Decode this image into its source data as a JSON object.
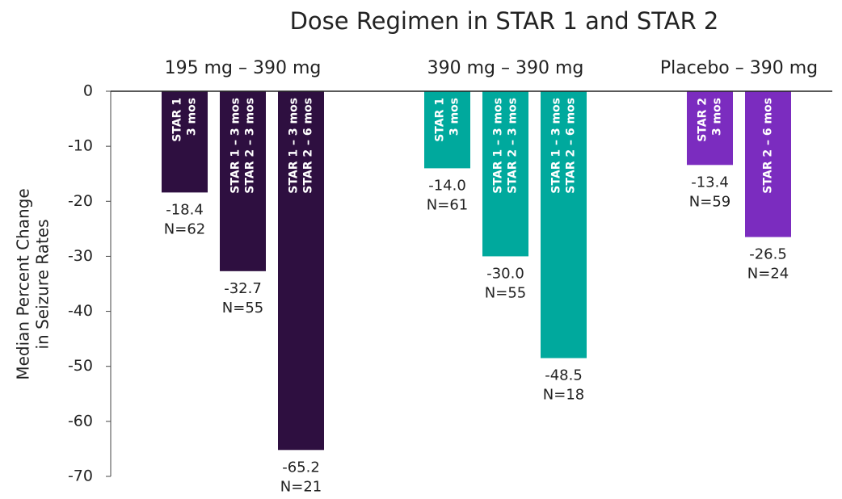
{
  "chart_data": {
    "type": "bar",
    "title": "Dose Regimen in STAR 1 and STAR 2",
    "y_label": [
      "Median Percent Change",
      "in Seizure Rates"
    ],
    "ylim": [
      -70,
      0
    ],
    "yticks": [
      0,
      -10,
      -20,
      -30,
      -40,
      -50,
      -60,
      -70
    ],
    "series": [
      {
        "name": "195 mg – 390 mg",
        "color": "#2e0f40",
        "values": [
          -18.4,
          -32.7,
          -65.2
        ],
        "bar_labels": [
          [
            "STAR 1",
            "3 mos"
          ],
          [
            "STAR 1 – 3 mos",
            "STAR 2 – 3 mos"
          ],
          [
            "STAR 1 – 3 mos",
            "STAR 2 – 6 mos"
          ]
        ],
        "n_labels": [
          "N=62",
          "N=55",
          "N=21"
        ]
      },
      {
        "name": "390 mg – 390 mg",
        "color": "#00a99d",
        "values": [
          -14.0,
          -30.0,
          -48.5
        ],
        "value_labels": [
          "-14.0",
          "-30.0",
          "-48.5"
        ],
        "bar_labels": [
          [
            "STAR 1",
            "3 mos"
          ],
          [
            "STAR 1 – 3 mos",
            "STAR 2 – 3 mos"
          ],
          [
            "STAR 1 – 3 mos",
            "STAR 2 – 6 mos"
          ]
        ],
        "n_labels": [
          "N=61",
          "N=55",
          "N=18"
        ]
      },
      {
        "name": "Placebo – 390 mg",
        "color": "#7b2cbf",
        "values": [
          -13.4,
          -26.5
        ],
        "bar_labels": [
          [
            "STAR 2",
            "3 mos"
          ],
          [
            "STAR 2 – 6 mos"
          ]
        ],
        "n_labels": [
          "N=59",
          "N=24"
        ]
      }
    ]
  }
}
